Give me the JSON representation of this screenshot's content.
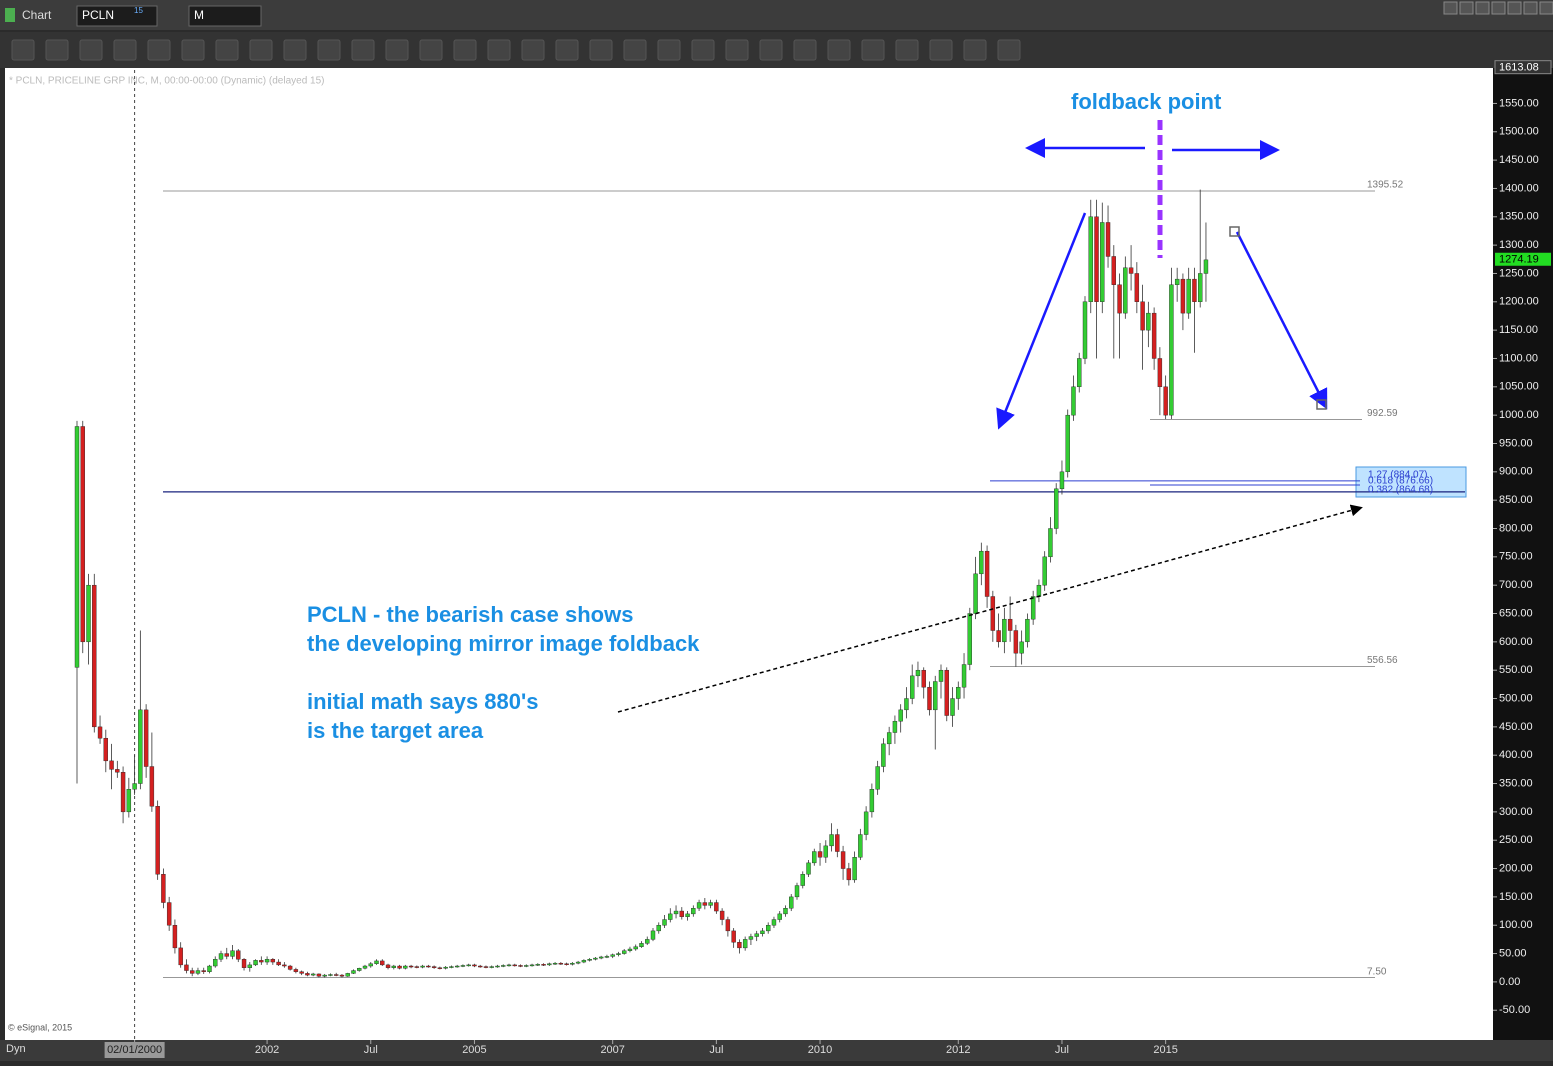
{
  "ui": {
    "tab": "Chart",
    "symbol": "PCLN",
    "symbol_sup": "15",
    "interval": "M",
    "copyright": "© eSignal, 2015",
    "mode": "Dyn"
  },
  "chart_data": {
    "type": "candlestick",
    "title": "* PCLN, PRICELINE GRP INC, M, 00:00-00:00 (Dynamic) (delayed 15)",
    "up_color": "#33cc33",
    "down_color": "#d42020",
    "open": [
      555,
      980,
      600,
      700,
      450,
      430,
      390,
      375,
      370,
      300,
      340,
      350,
      480,
      380,
      310,
      190,
      140,
      100,
      60,
      30,
      20,
      15,
      20,
      18,
      28,
      40,
      50,
      45,
      55,
      40,
      25,
      30,
      38,
      35,
      40,
      35,
      30,
      28,
      22,
      18,
      15,
      12,
      14,
      10,
      12,
      13,
      12,
      10,
      15,
      20,
      24,
      28,
      32,
      37,
      30,
      25,
      28,
      24,
      28,
      27,
      26,
      28,
      27,
      25,
      24,
      26,
      27,
      28,
      29,
      30,
      28,
      27,
      26,
      27,
      28,
      29,
      30,
      29,
      28,
      29,
      30,
      31,
      30,
      32,
      33,
      32,
      31,
      33,
      35,
      38,
      40,
      42,
      44,
      45,
      48,
      50,
      55,
      58,
      62,
      68,
      75,
      90,
      100,
      110,
      120,
      125,
      115,
      120,
      130,
      140,
      135,
      140,
      125,
      110,
      90,
      70,
      60,
      75,
      80,
      85,
      90,
      100,
      110,
      120,
      130,
      150,
      170,
      190,
      210,
      230,
      220,
      240,
      260,
      230,
      200,
      180,
      220,
      260,
      300,
      340,
      380,
      420,
      440,
      460,
      480,
      500,
      540,
      550,
      520,
      480,
      530,
      550,
      470,
      500,
      520,
      560,
      650,
      720,
      760,
      680,
      620,
      600,
      640,
      620,
      580,
      600,
      640,
      680,
      700,
      750,
      800,
      870,
      900,
      1000,
      1050,
      1100,
      1200,
      1350,
      1200,
      1340,
      1280,
      1230,
      1180,
      1260,
      1250,
      1200,
      1150,
      1180,
      1100,
      1050,
      1000,
      1230,
      1240,
      1180,
      1240,
      1200,
      1250
    ],
    "high": [
      990,
      990,
      720,
      720,
      470,
      445,
      420,
      390,
      380,
      360,
      400,
      620,
      490,
      440,
      320,
      200,
      150,
      110,
      70,
      40,
      25,
      25,
      25,
      30,
      45,
      55,
      60,
      65,
      58,
      42,
      35,
      40,
      45,
      45,
      42,
      40,
      35,
      30,
      25,
      20,
      18,
      16,
      15,
      14,
      15,
      16,
      14,
      16,
      22,
      25,
      30,
      35,
      40,
      40,
      32,
      30,
      30,
      30,
      30,
      29,
      30,
      30,
      29,
      27,
      28,
      29,
      30,
      31,
      32,
      32,
      30,
      29,
      29,
      30,
      31,
      32,
      32,
      31,
      31,
      32,
      33,
      33,
      34,
      35,
      35,
      34,
      35,
      37,
      40,
      42,
      44,
      46,
      48,
      50,
      53,
      58,
      62,
      66,
      72,
      80,
      95,
      105,
      118,
      130,
      135,
      132,
      125,
      135,
      145,
      148,
      145,
      145,
      130,
      115,
      95,
      75,
      80,
      85,
      90,
      95,
      105,
      115,
      125,
      135,
      155,
      175,
      195,
      215,
      235,
      245,
      250,
      280,
      270,
      240,
      210,
      230,
      270,
      310,
      350,
      390,
      430,
      450,
      470,
      490,
      520,
      560,
      565,
      555,
      530,
      540,
      560,
      555,
      520,
      530,
      580,
      660,
      750,
      775,
      770,
      690,
      650,
      660,
      680,
      630,
      620,
      650,
      690,
      710,
      760,
      820,
      880,
      920,
      1010,
      1070,
      1110,
      1210,
      1380,
      1380,
      1375,
      1370,
      1300,
      1250,
      1280,
      1300,
      1270,
      1230,
      1200,
      1190,
      1120,
      1070,
      1260,
      1260,
      1250,
      1260,
      1260,
      1398,
      1340
    ],
    "low": [
      350,
      580,
      560,
      440,
      420,
      370,
      340,
      360,
      280,
      290,
      330,
      340,
      360,
      300,
      180,
      130,
      90,
      50,
      25,
      15,
      10,
      12,
      14,
      15,
      25,
      35,
      40,
      40,
      35,
      20,
      18,
      28,
      30,
      30,
      30,
      28,
      25,
      20,
      15,
      12,
      10,
      10,
      8,
      8,
      10,
      10,
      8,
      9,
      14,
      18,
      22,
      25,
      30,
      28,
      22,
      22,
      22,
      22,
      24,
      24,
      24,
      25,
      23,
      22,
      22,
      24,
      25,
      26,
      27,
      26,
      25,
      24,
      24,
      25,
      26,
      27,
      27,
      26,
      26,
      27,
      28,
      28,
      28,
      30,
      30,
      29,
      29,
      31,
      33,
      36,
      38,
      40,
      42,
      42,
      45,
      48,
      52,
      55,
      60,
      65,
      72,
      85,
      95,
      105,
      112,
      110,
      108,
      115,
      125,
      128,
      130,
      120,
      100,
      80,
      60,
      50,
      55,
      65,
      72,
      80,
      85,
      95,
      105,
      115,
      125,
      145,
      165,
      185,
      205,
      205,
      210,
      230,
      220,
      180,
      170,
      175,
      215,
      250,
      290,
      330,
      370,
      400,
      420,
      440,
      465,
      490,
      520,
      500,
      470,
      410,
      500,
      460,
      450,
      480,
      500,
      550,
      640,
      700,
      660,
      600,
      590,
      580,
      600,
      556,
      560,
      590,
      630,
      670,
      690,
      740,
      790,
      860,
      890,
      990,
      1040,
      1090,
      1180,
      1100,
      1180,
      1260,
      1100,
      1100,
      1170,
      1220,
      1180,
      1080,
      1120,
      1080,
      1000,
      993,
      993,
      1200,
      1150,
      1170,
      1110,
      1190,
      1200
    ],
    "close": [
      980,
      600,
      700,
      450,
      430,
      390,
      375,
      370,
      300,
      340,
      350,
      480,
      380,
      310,
      190,
      140,
      100,
      60,
      30,
      20,
      15,
      20,
      18,
      28,
      40,
      50,
      45,
      55,
      40,
      25,
      30,
      38,
      35,
      40,
      35,
      30,
      28,
      22,
      18,
      15,
      12,
      14,
      10,
      12,
      13,
      12,
      10,
      15,
      20,
      24,
      28,
      32,
      37,
      30,
      25,
      28,
      24,
      28,
      27,
      26,
      28,
      27,
      25,
      24,
      26,
      27,
      28,
      29,
      30,
      28,
      27,
      26,
      27,
      28,
      29,
      30,
      29,
      28,
      29,
      30,
      31,
      30,
      32,
      33,
      32,
      31,
      33,
      35,
      38,
      40,
      42,
      44,
      45,
      48,
      50,
      55,
      58,
      62,
      68,
      75,
      90,
      100,
      110,
      120,
      125,
      115,
      120,
      130,
      140,
      135,
      140,
      125,
      110,
      90,
      70,
      60,
      75,
      80,
      85,
      90,
      100,
      110,
      120,
      130,
      150,
      170,
      190,
      210,
      230,
      220,
      240,
      260,
      230,
      200,
      180,
      220,
      260,
      300,
      340,
      380,
      420,
      440,
      460,
      480,
      500,
      540,
      550,
      520,
      480,
      530,
      550,
      470,
      500,
      520,
      560,
      650,
      720,
      760,
      680,
      620,
      600,
      640,
      620,
      580,
      600,
      640,
      680,
      700,
      750,
      800,
      870,
      900,
      1000,
      1050,
      1100,
      1200,
      1350,
      1200,
      1340,
      1280,
      1230,
      1180,
      1260,
      1250,
      1200,
      1150,
      1180,
      1100,
      1050,
      1000,
      1230,
      1240,
      1180,
      1240,
      1200,
      1250,
      1274
    ],
    "ylim": [
      1609,
      -99
    ],
    "yticks": [
      {
        "value": 1550,
        "label": "1550.00"
      },
      {
        "value": 1500,
        "label": "1500.00"
      },
      {
        "value": 1450,
        "label": "1450.00"
      },
      {
        "value": 1400,
        "label": "1400.00"
      },
      {
        "value": 1350,
        "label": "1350.00"
      },
      {
        "value": 1300,
        "label": "1300.00"
      },
      {
        "value": 1250,
        "label": "1250.00"
      },
      {
        "value": 1200,
        "label": "1200.00"
      },
      {
        "value": 1150,
        "label": "1150.00"
      },
      {
        "value": 1100,
        "label": "1100.00"
      },
      {
        "value": 1050,
        "label": "1050.00"
      },
      {
        "value": 1000,
        "label": "1000.00"
      },
      {
        "value": 950,
        "label": "950.00"
      },
      {
        "value": 900,
        "label": "900.00"
      },
      {
        "value": 850,
        "label": "850.00"
      },
      {
        "value": 800,
        "label": "800.00"
      },
      {
        "value": 750,
        "label": "750.00"
      },
      {
        "value": 700,
        "label": "700.00"
      },
      {
        "value": 650,
        "label": "650.00"
      },
      {
        "value": 600,
        "label": "600.00"
      },
      {
        "value": 550,
        "label": "550.00"
      },
      {
        "value": 500,
        "label": "500.00"
      },
      {
        "value": 450,
        "label": "450.00"
      },
      {
        "value": 400,
        "label": "400.00"
      },
      {
        "value": 350,
        "label": "350.00"
      },
      {
        "value": 300,
        "label": "300.00"
      },
      {
        "value": 250,
        "label": "250.00"
      },
      {
        "value": 200,
        "label": "200.00"
      },
      {
        "value": 150,
        "label": "150.00"
      },
      {
        "value": 100,
        "label": "100.00"
      },
      {
        "value": 50,
        "label": "50.00"
      },
      {
        "value": 0,
        "label": "0.00"
      },
      {
        "value": -50,
        "label": "-50.00"
      }
    ],
    "xticks": [
      {
        "value": 10,
        "label": "02/01/2000"
      },
      {
        "value": 33,
        "label": "2002"
      },
      {
        "value": 51,
        "label": "Jul"
      },
      {
        "value": 69,
        "label": "2005"
      },
      {
        "value": 93,
        "label": "2007"
      },
      {
        "value": 111,
        "label": "Jul"
      },
      {
        "value": 129,
        "label": "2010"
      },
      {
        "value": 153,
        "label": "2012"
      },
      {
        "value": 171,
        "label": "Jul"
      },
      {
        "value": 189,
        "label": "2015"
      }
    ],
    "levels": [
      1395.52,
      992.59,
      556.56,
      {
        "value": 7.5,
        "label": "7.50"
      }
    ],
    "fib": [
      {
        "value": 884.07,
        "label": "1.27 (884.07)"
      },
      {
        "value": 876.66,
        "label": "0.618 (876.66)"
      },
      {
        "value": 864.68,
        "label": "0.382 (864.68)"
      }
    ],
    "top_price": 1613.08,
    "last_price": 1274.19,
    "annotations": [
      "foldback point",
      "PCLN - the bearish case shows",
      "the developing mirror image foldback",
      "initial math says 880's",
      "is the target area"
    ]
  }
}
